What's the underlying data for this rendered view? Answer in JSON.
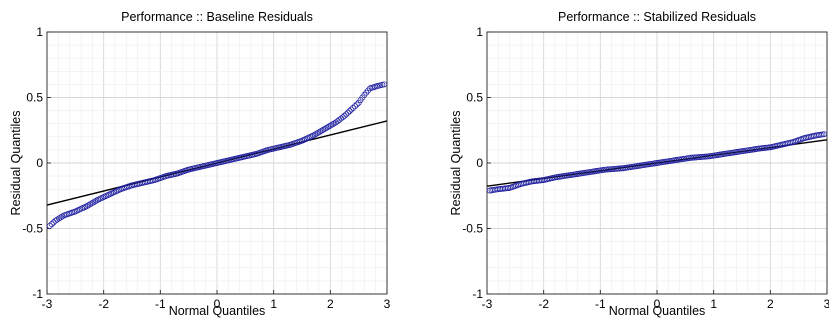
{
  "chart_data": [
    {
      "type": "scatter",
      "title": "Performance :: Baseline Residuals",
      "xlabel": "Normal Quantiles",
      "ylabel": "Residual Quantiles",
      "xlim": [
        -3,
        3
      ],
      "ylim": [
        -1,
        1
      ],
      "xticks": [
        "-3",
        "-2",
        "-1",
        "0",
        "1",
        "2",
        "3"
      ],
      "yticks": [
        "-1",
        "-0.5",
        "0",
        "0.5",
        "1"
      ],
      "grid": "major and minor",
      "reference_line": {
        "slope": 0.107,
        "intercept": 0.0
      },
      "series": [
        {
          "marker": "open circle",
          "color": "#1f1fa0",
          "points": [
            [
              -2.95,
              -0.48
            ],
            [
              -2.85,
              -0.44
            ],
            [
              -2.7,
              -0.4
            ],
            [
              -2.5,
              -0.37
            ],
            [
              -2.3,
              -0.33
            ],
            [
              -2.1,
              -0.28
            ],
            [
              -1.9,
              -0.24
            ],
            [
              -1.7,
              -0.2
            ],
            [
              -1.5,
              -0.17
            ],
            [
              -1.3,
              -0.15
            ],
            [
              -1.1,
              -0.13
            ],
            [
              -0.9,
              -0.1
            ],
            [
              -0.7,
              -0.08
            ],
            [
              -0.5,
              -0.05
            ],
            [
              -0.3,
              -0.03
            ],
            [
              -0.1,
              -0.01
            ],
            [
              0.1,
              0.01
            ],
            [
              0.3,
              0.03
            ],
            [
              0.5,
              0.05
            ],
            [
              0.7,
              0.07
            ],
            [
              0.9,
              0.1
            ],
            [
              1.1,
              0.12
            ],
            [
              1.3,
              0.14
            ],
            [
              1.5,
              0.17
            ],
            [
              1.7,
              0.21
            ],
            [
              1.9,
              0.26
            ],
            [
              2.1,
              0.31
            ],
            [
              2.25,
              0.36
            ],
            [
              2.4,
              0.42
            ],
            [
              2.5,
              0.46
            ],
            [
              2.6,
              0.52
            ],
            [
              2.7,
              0.57
            ],
            [
              2.85,
              0.59
            ],
            [
              2.95,
              0.6
            ]
          ]
        }
      ]
    },
    {
      "type": "scatter",
      "title": "Performance :: Stabilized Residuals",
      "xlabel": "Normal Quantiles",
      "ylabel": "Residual Quantiles",
      "xlim": [
        -3,
        3
      ],
      "ylim": [
        -1,
        1
      ],
      "xticks": [
        "-3",
        "-2",
        "-1",
        "0",
        "1",
        "2",
        "3"
      ],
      "yticks": [
        "-1",
        "-0.5",
        "0",
        "0.5",
        "1"
      ],
      "grid": "major and minor",
      "reference_line": {
        "slope": 0.059,
        "intercept": 0.0
      },
      "series": [
        {
          "marker": "open circle",
          "color": "#1f1fa0",
          "points": [
            [
              -2.95,
              -0.21
            ],
            [
              -2.8,
              -0.2
            ],
            [
              -2.6,
              -0.19
            ],
            [
              -2.4,
              -0.16
            ],
            [
              -2.2,
              -0.14
            ],
            [
              -2.0,
              -0.13
            ],
            [
              -1.8,
              -0.11
            ],
            [
              -1.5,
              -0.09
            ],
            [
              -1.2,
              -0.07
            ],
            [
              -0.9,
              -0.05
            ],
            [
              -0.6,
              -0.04
            ],
            [
              -0.3,
              -0.02
            ],
            [
              0.0,
              0.0
            ],
            [
              0.3,
              0.02
            ],
            [
              0.6,
              0.04
            ],
            [
              0.9,
              0.05
            ],
            [
              1.2,
              0.07
            ],
            [
              1.5,
              0.09
            ],
            [
              1.8,
              0.11
            ],
            [
              2.0,
              0.12
            ],
            [
              2.2,
              0.14
            ],
            [
              2.4,
              0.16
            ],
            [
              2.6,
              0.19
            ],
            [
              2.8,
              0.21
            ],
            [
              2.95,
              0.22
            ]
          ]
        }
      ]
    }
  ]
}
